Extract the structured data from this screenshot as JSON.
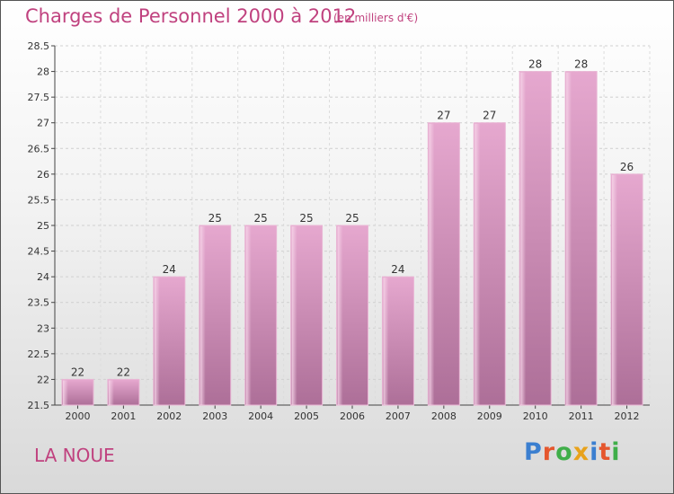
{
  "header": {
    "title": "Charges de Personnel 2000 à 2012",
    "subtitle": "(en milliers d'€)"
  },
  "footer": {
    "place": "LA NOUE",
    "logo": {
      "letters": [
        "P",
        "r",
        "o",
        "x",
        "i",
        "t",
        "i"
      ],
      "colors": [
        "#3b7fd0",
        "#e5572e",
        "#3fae49",
        "#e8a21b",
        "#3b7fd0",
        "#e5572e",
        "#3fae49"
      ]
    }
  },
  "chart_data": {
    "type": "bar",
    "categories": [
      "2000",
      "2001",
      "2002",
      "2003",
      "2004",
      "2005",
      "2006",
      "2007",
      "2008",
      "2009",
      "2010",
      "2011",
      "2012"
    ],
    "values": [
      22,
      22,
      24,
      25,
      25,
      25,
      25,
      24,
      27,
      27,
      28,
      28,
      26
    ],
    "value_labels": [
      "22",
      "22",
      "24",
      "25",
      "25",
      "25",
      "25",
      "24",
      "27",
      "27",
      "28",
      "28",
      "26"
    ],
    "ylim": [
      21.5,
      28.5
    ],
    "yticks": [
      21.5,
      22,
      22.5,
      23,
      23.5,
      24,
      24.5,
      25,
      25.5,
      26,
      26.5,
      27,
      27.5,
      28,
      28.5
    ],
    "ytick_labels": [
      "21.5",
      "22",
      "22.5",
      "23",
      "23.5",
      "24",
      "24.5",
      "25",
      "25.5",
      "26",
      "26.5",
      "27",
      "27.5",
      "28",
      "28.5"
    ],
    "grid": true,
    "bar_color": "#d890bb"
  }
}
